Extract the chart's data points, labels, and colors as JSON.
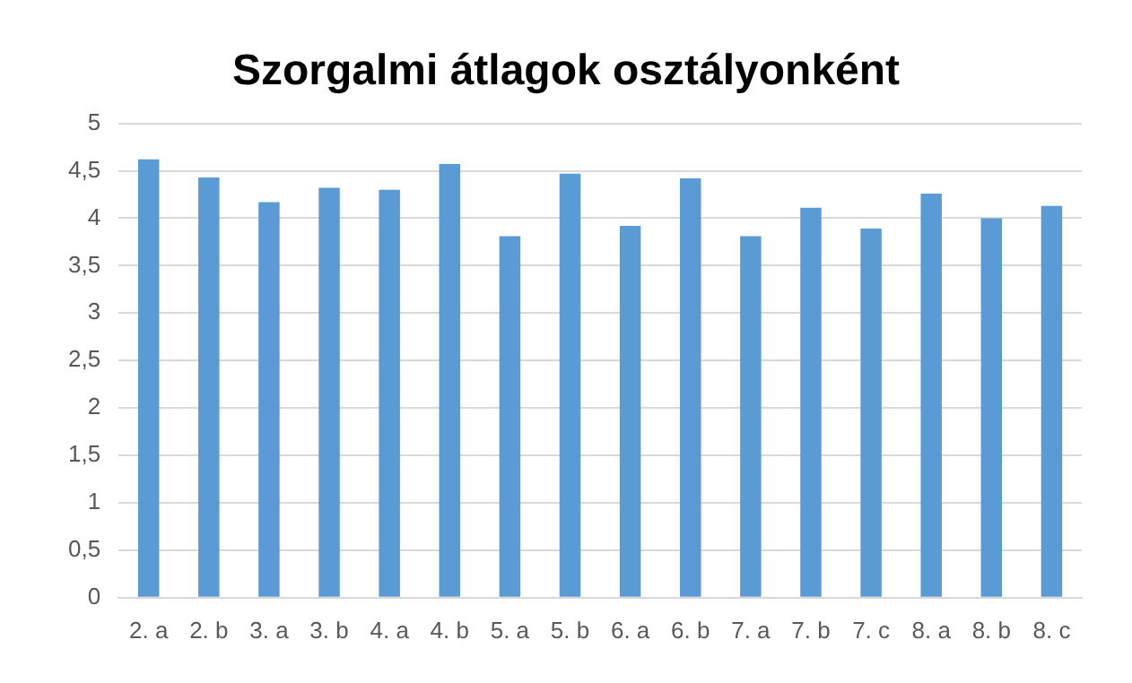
{
  "chart_data": {
    "type": "bar",
    "title": "Szorgalmi átlagok osztályonként",
    "categories": [
      "2. a",
      "2. b",
      "3. a",
      "3. b",
      "4. a",
      "4. b",
      "5. a",
      "5. b",
      "6. a",
      "6. b",
      "7. a",
      "7. b",
      "7. c",
      "8. a",
      "8. b",
      "8. c"
    ],
    "values": [
      4.62,
      4.43,
      4.17,
      4.32,
      4.3,
      4.57,
      3.81,
      4.47,
      3.92,
      4.42,
      3.81,
      4.11,
      3.89,
      4.26,
      4.0,
      4.13
    ],
    "color": "#5b9bd5",
    "ylim": [
      0,
      5
    ],
    "yticks": [
      0,
      {
        "value": 0.5,
        "label": "0,5"
      },
      1,
      {
        "value": 1.5,
        "label": "1,5"
      },
      2,
      {
        "value": 2.5,
        "label": "2,5"
      },
      3,
      {
        "value": 3.5,
        "label": "3,5"
      },
      4,
      {
        "value": 4.5,
        "label": "4,5"
      },
      5
    ],
    "grid": "y",
    "legend": false
  }
}
